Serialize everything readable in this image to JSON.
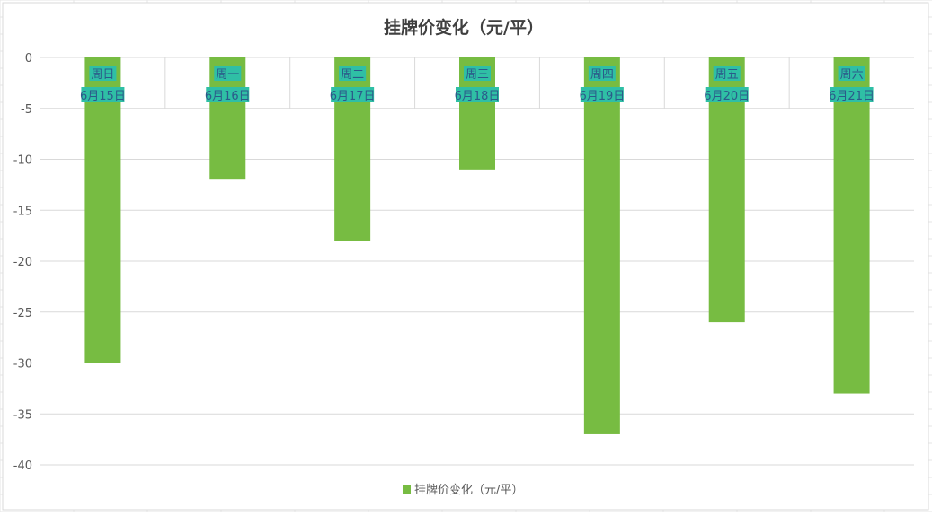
{
  "chart_data": {
    "type": "bar",
    "title": "挂牌价变化（元/平）",
    "categories": [
      {
        "day": "周日",
        "date": "6月15日"
      },
      {
        "day": "周一",
        "date": "6月16日"
      },
      {
        "day": "周二",
        "date": "6月17日"
      },
      {
        "day": "周三",
        "date": "6月18日"
      },
      {
        "day": "周四",
        "date": "6月19日"
      },
      {
        "day": "周五",
        "date": "6月20日"
      },
      {
        "day": "周六",
        "date": "6月21日"
      }
    ],
    "series": [
      {
        "name": "挂牌价变化（元/平）",
        "color": "#77bc42",
        "values": [
          -30,
          -12,
          -18,
          -11,
          -37,
          -26,
          -33
        ]
      }
    ],
    "ylim": [
      -40,
      0
    ],
    "yticks": [
      "0",
      "-5",
      "-10",
      "-15",
      "-20",
      "-25",
      "-30",
      "-35",
      "-40"
    ],
    "grid": true,
    "legend_position": "bottom",
    "colors": {
      "bar": "#77bc42",
      "label_bg": "#2fbfa5",
      "label_text": "#2b5a8a",
      "grid": "#d9d9d9",
      "sheet_grid": "#e6e6e6"
    }
  }
}
